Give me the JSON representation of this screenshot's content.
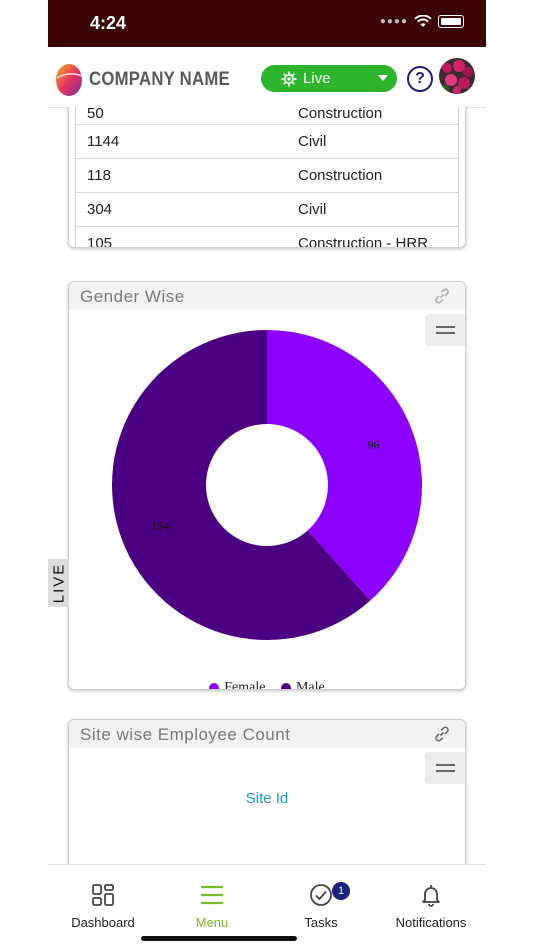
{
  "status_bar": {
    "time": "4:24"
  },
  "header": {
    "company_name": "COMPANY NAME",
    "mode_label": "Live",
    "help_label": "?"
  },
  "table": {
    "rows": [
      {
        "col1": "50",
        "col2": "Construction"
      },
      {
        "col1": "1144",
        "col2": "Civil"
      },
      {
        "col1": "118",
        "col2": "Construction"
      },
      {
        "col1": "304",
        "col2": "Civil"
      },
      {
        "col1": "105",
        "col2": "Construction - HRR"
      }
    ]
  },
  "side_tab": {
    "label": "LIVE"
  },
  "gender_card": {
    "title": "Gender Wise",
    "chart_data": {
      "type": "pie",
      "donut": true,
      "categories": [
        "Female",
        "Male"
      ],
      "values": [
        96,
        154
      ],
      "colors": [
        "#8b00ff",
        "#4b0082"
      ],
      "legend": "bottom"
    }
  },
  "site_card": {
    "title": "Site wise Employee Count",
    "axis_label": "Site Id"
  },
  "bottom_nav": {
    "items": [
      {
        "label": "Dashboard",
        "icon": "dashboard-icon"
      },
      {
        "label": "Menu",
        "icon": "hamburger-icon"
      },
      {
        "label": "Tasks",
        "icon": "tasks-check-icon",
        "badge": "1"
      },
      {
        "label": "Notifications",
        "icon": "bell-icon"
      }
    ]
  },
  "colors": {
    "status_bar": "#3b0605",
    "live_green": "#2db52d",
    "menu_active": "#7ab929",
    "female": "#8b00ff",
    "male": "#4b0082",
    "link_blue": "#1a9bd7"
  }
}
